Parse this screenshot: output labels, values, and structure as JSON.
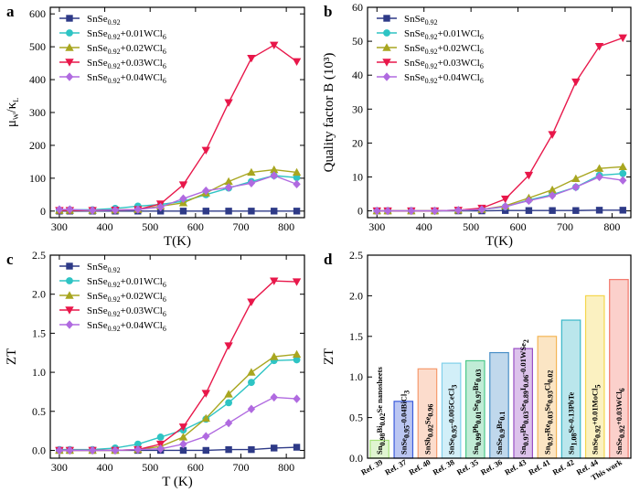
{
  "chart_data": [
    {
      "panel_label": "a",
      "type": "line",
      "ylabel": "μW/κL",
      "xlabel": "T(K)",
      "xlim": [
        280,
        840
      ],
      "ylim": [
        -20,
        620
      ],
      "xticks": [
        300,
        400,
        500,
        600,
        700,
        800
      ],
      "yticks": [
        0,
        100,
        200,
        300,
        400,
        500,
        600
      ],
      "legend_position": "top-left",
      "x": [
        300,
        323,
        373,
        423,
        473,
        523,
        573,
        623,
        673,
        723,
        773,
        823
      ],
      "series": [
        {
          "name": "SnSe0.92",
          "color": "#2e3a87",
          "marker": "square",
          "values": [
            0,
            0,
            0,
            0,
            0,
            0,
            0,
            0,
            0,
            0,
            0,
            0
          ]
        },
        {
          "name": "SnSe0.92+0.01WCl6",
          "color": "#2ec4c4",
          "marker": "circle",
          "values": [
            3,
            4,
            4,
            8,
            15,
            20,
            30,
            50,
            70,
            90,
            108,
            102
          ]
        },
        {
          "name": "SnSe0.92+0.02WCl6",
          "color": "#a8a620",
          "marker": "triangle-up",
          "values": [
            2,
            2,
            2,
            3,
            5,
            15,
            25,
            55,
            90,
            118,
            126,
            118
          ]
        },
        {
          "name": "SnSe0.92+0.03WCl6",
          "color": "#e8174a",
          "marker": "triangle-down",
          "values": [
            2,
            2,
            2,
            3,
            5,
            22,
            80,
            185,
            330,
            465,
            505,
            455
          ]
        },
        {
          "name": "SnSe0.92+0.04WCl6",
          "color": "#b06ae0",
          "marker": "diamond",
          "values": [
            5,
            5,
            2,
            3,
            5,
            12,
            38,
            62,
            72,
            85,
            108,
            82
          ]
        }
      ]
    },
    {
      "panel_label": "b",
      "type": "line",
      "ylabel": "Quality factor B (10³)",
      "xlabel": "T(K)",
      "xlim": [
        280,
        840
      ],
      "ylim": [
        -2,
        60
      ],
      "xticks": [
        300,
        400,
        500,
        600,
        700,
        800
      ],
      "yticks": [
        0,
        10,
        20,
        30,
        40,
        50,
        60
      ],
      "legend_position": "top-left",
      "x": [
        300,
        323,
        373,
        423,
        473,
        523,
        573,
        623,
        673,
        723,
        773,
        823
      ],
      "series": [
        {
          "name": "SnSe0.92",
          "color": "#2e3a87",
          "marker": "square",
          "values": [
            0,
            0,
            0,
            0,
            0,
            0,
            0.1,
            0.1,
            0.1,
            0.1,
            0.2,
            0.2
          ]
        },
        {
          "name": "SnSe0.92+0.01WCl6",
          "color": "#2ec4c4",
          "marker": "circle",
          "values": [
            0,
            0,
            0,
            0,
            0.2,
            0.4,
            1.2,
            3.2,
            4.8,
            7,
            10.5,
            11
          ]
        },
        {
          "name": "SnSe0.92+0.02WCl6",
          "color": "#a8a620",
          "marker": "triangle-up",
          "values": [
            0,
            0,
            0,
            0,
            0.2,
            0.4,
            1.5,
            3.8,
            6.2,
            9.5,
            12.5,
            13
          ]
        },
        {
          "name": "SnSe0.92+0.03WCl6",
          "color": "#e8174a",
          "marker": "triangle-down",
          "values": [
            0,
            0,
            0,
            0,
            0.2,
            0.8,
            3.5,
            10.5,
            22.5,
            38,
            48.5,
            51
          ]
        },
        {
          "name": "SnSe0.92+0.04WCl6",
          "color": "#b06ae0",
          "marker": "diamond",
          "values": [
            0,
            0,
            0,
            0,
            0.2,
            0.4,
            1.3,
            3,
            4.5,
            7,
            10,
            9
          ]
        }
      ]
    },
    {
      "panel_label": "c",
      "type": "line",
      "ylabel": "ZT",
      "xlabel": "T (K)",
      "xlim": [
        280,
        840
      ],
      "ylim": [
        -0.1,
        2.5
      ],
      "xticks": [
        300,
        400,
        500,
        600,
        700,
        800
      ],
      "yticks": [
        0.0,
        0.5,
        1.0,
        1.5,
        2.0,
        2.5
      ],
      "ytick_format": "0.0",
      "legend_position": "top-left",
      "x": [
        300,
        323,
        373,
        423,
        473,
        523,
        573,
        623,
        673,
        723,
        773,
        823
      ],
      "series": [
        {
          "name": "SnSe0.92",
          "color": "#2e3a87",
          "marker": "square",
          "values": [
            0,
            0,
            0,
            0,
            0,
            0,
            0,
            0,
            0.01,
            0.01,
            0.03,
            0.04
          ]
        },
        {
          "name": "SnSe0.92+0.01WCl6",
          "color": "#2ec4c4",
          "marker": "circle",
          "values": [
            0.01,
            0.01,
            0.01,
            0.03,
            0.08,
            0.17,
            0.26,
            0.4,
            0.61,
            0.87,
            1.15,
            1.16
          ]
        },
        {
          "name": "SnSe0.92+0.02WCl6",
          "color": "#a8a620",
          "marker": "triangle-up",
          "values": [
            0,
            0,
            0,
            0,
            0.01,
            0.05,
            0.17,
            0.41,
            0.72,
            1.0,
            1.2,
            1.23
          ]
        },
        {
          "name": "SnSe0.92+0.03WCl6",
          "color": "#e8174a",
          "marker": "triangle-down",
          "values": [
            0,
            0,
            0,
            0,
            0.01,
            0.08,
            0.3,
            0.73,
            1.34,
            1.9,
            2.17,
            2.16
          ]
        },
        {
          "name": "SnSe0.92+0.04WCl6",
          "color": "#b06ae0",
          "marker": "diamond",
          "values": [
            0,
            0,
            0,
            0,
            0.01,
            0.02,
            0.08,
            0.18,
            0.35,
            0.53,
            0.68,
            0.66
          ]
        }
      ]
    },
    {
      "panel_label": "d",
      "type": "bar",
      "ylabel": "ZT",
      "ylim": [
        0,
        2.5
      ],
      "yticks": [
        0.0,
        0.5,
        1.0,
        1.5,
        2.0,
        2.5
      ],
      "ytick_format": "0.0",
      "categories": [
        "Ref. 39",
        "Ref. 37",
        "Ref. 40",
        "Ref. 38",
        "Ref. 35",
        "Ref. 36",
        "Ref. 43",
        "Ref. 41",
        "Ref. 42",
        "Ref. 44",
        "This work"
      ],
      "values": [
        0.22,
        0.7,
        1.1,
        1.17,
        1.2,
        1.3,
        1.35,
        1.5,
        1.7,
        2.0,
        2.2
      ],
      "colors": [
        "#a6e27a",
        "#3b5bdb",
        "#f59a6c",
        "#7fd0ea",
        "#4cc98a",
        "#4a90c8",
        "#9a4fc5",
        "#f4b555",
        "#39b6c8",
        "#f4d64c",
        "#f3776a"
      ],
      "bar_labels": [
        "Sn0.98Bi0.02Se nanosheets",
        "SnSe0.95-0.04BiCl3",
        "SnSb0.02Se0.96",
        "SnSe0.95-0.005CeCl3",
        "Sn0.99Pb0.01Se0.97Br0.03",
        "SnSe0.9Br0.1",
        "Sn0.97Pb0.03Se0.89I0.06-0.01WSe2",
        "Sn0.97Re0.03Se0.93Cl0.02",
        "Sn1.08Se-0.13PbTe",
        "SnSe0.92+0.01MoCl5",
        "SnSe0.92+0.03WCl6"
      ]
    }
  ]
}
